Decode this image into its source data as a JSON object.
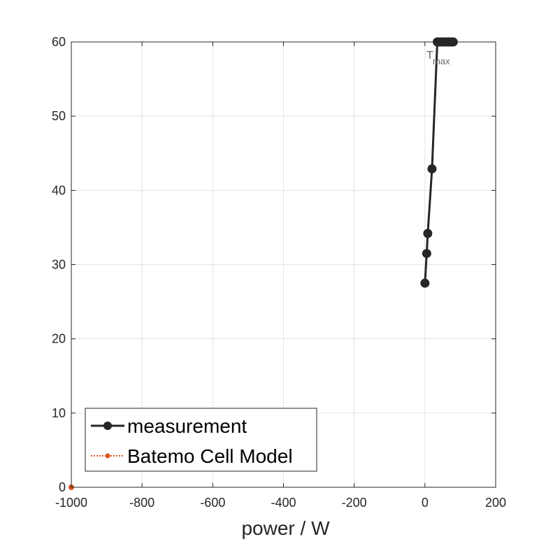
{
  "chart_data": {
    "type": "line",
    "title": "",
    "xlabel": "power / W",
    "ylabel": "",
    "xlim": [
      -1000,
      200
    ],
    "ylim": [
      0,
      60
    ],
    "xticks": [
      -1000,
      -800,
      -600,
      -400,
      -200,
      0,
      200
    ],
    "yticks": [
      0,
      10,
      20,
      30,
      40,
      50,
      60
    ],
    "xtick_labels": [
      "-1000",
      "-800",
      "-600",
      "-400",
      "-200",
      "0",
      "200"
    ],
    "ytick_labels": [
      "0",
      "10",
      "20",
      "30",
      "40",
      "50",
      "60"
    ],
    "grid": true,
    "legend_position": "bottom-left",
    "series": [
      {
        "name": "measurement",
        "color": "#262626",
        "style": "solid",
        "x": [
          0,
          5,
          8,
          20,
          35,
          40,
          45,
          50,
          55,
          60,
          65,
          70,
          75,
          80
        ],
        "y": [
          27.5,
          31.5,
          34.2,
          42.9,
          60,
          60,
          60,
          60,
          60,
          60,
          60,
          60,
          60,
          60
        ]
      },
      {
        "name": "Batemo Cell Model",
        "color": "#D95319",
        "style": "dotted",
        "x": [
          -1000
        ],
        "y": [
          0
        ]
      }
    ],
    "annotations": [
      {
        "text": "T",
        "subscript": "max",
        "x": 20,
        "y": 58.3
      }
    ]
  }
}
